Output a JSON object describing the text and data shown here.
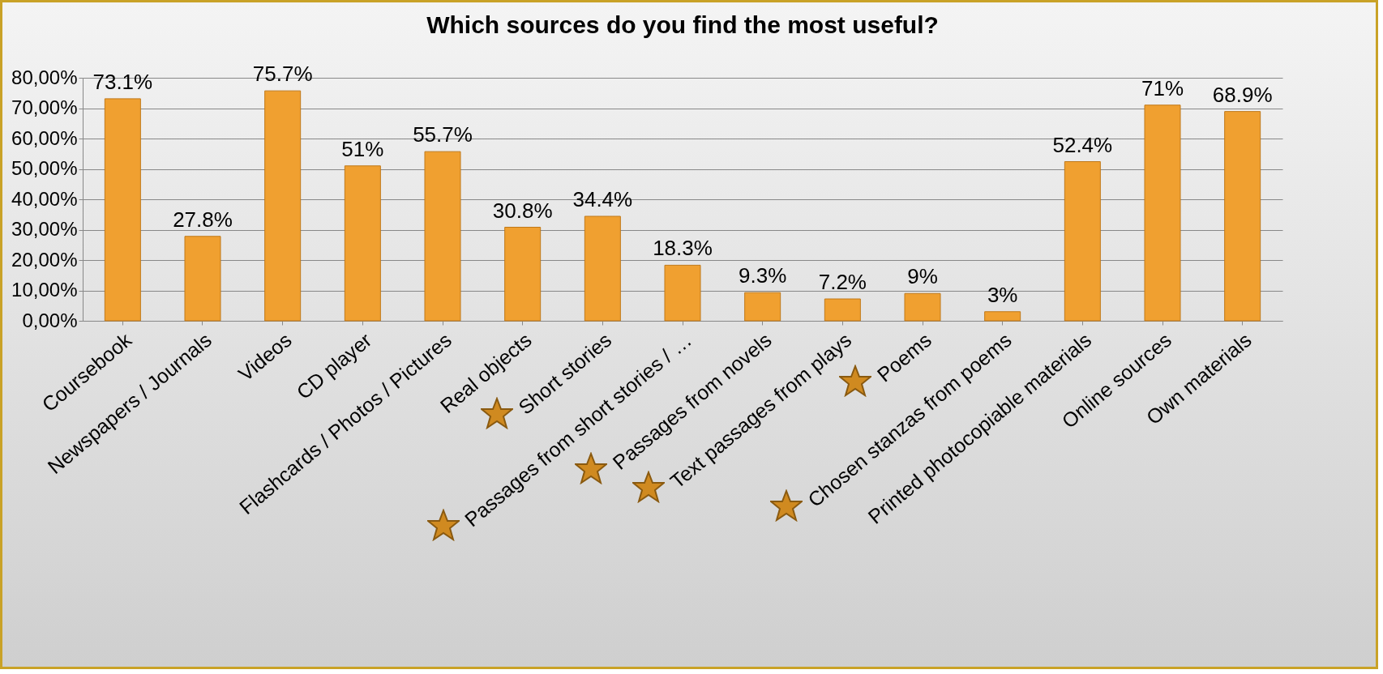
{
  "chart_data": {
    "type": "bar",
    "title": "Which sources do you find the most useful?",
    "categories": [
      "Coursebook",
      "Newspapers / Journals",
      "Videos",
      "CD player",
      "Flashcards / Photos / Pictures",
      "Real objects",
      "Short stories",
      "Passages from short stories / …",
      "Passages from novels",
      "Text passages from plays",
      "Poems",
      "Chosen stanzas from poems",
      "Printed photocopiable materials",
      "Online sources",
      "Own materials"
    ],
    "values": [
      73.1,
      27.8,
      75.7,
      51,
      55.7,
      30.8,
      34.4,
      18.3,
      9.3,
      7.2,
      9,
      3,
      52.4,
      71,
      68.9
    ],
    "value_labels": [
      "73.1%",
      "27.8%",
      "75.7%",
      "51%",
      "55.7%",
      "30.8%",
      "34.4%",
      "18.3%",
      "9.3%",
      "7.2%",
      "9%",
      "3%",
      "52.4%",
      "71%",
      "68.9%"
    ],
    "color": "#f0a030",
    "ylim": [
      0,
      80
    ],
    "yticks": [
      {
        "value": 0,
        "label": "0,00%"
      },
      {
        "value": 10,
        "label": "10,00%"
      },
      {
        "value": 20,
        "label": "20,00%"
      },
      {
        "value": 30,
        "label": "30,00%"
      },
      {
        "value": 40,
        "label": "40,00%"
      },
      {
        "value": 50,
        "label": "50,00%"
      },
      {
        "value": 60,
        "label": "60,00%"
      },
      {
        "value": 70,
        "label": "70,00%"
      },
      {
        "value": 80,
        "label": "80,00%"
      }
    ],
    "grid": "y"
  }
}
